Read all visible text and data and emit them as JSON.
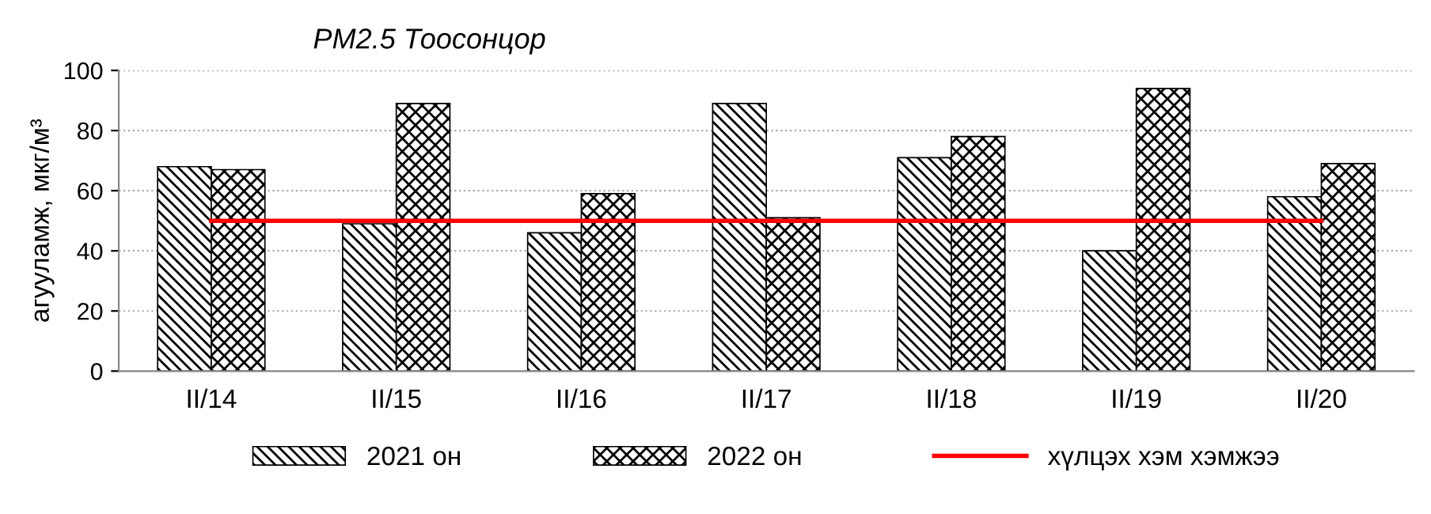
{
  "chart_data": {
    "type": "bar",
    "title": "PM2.5 Тоосонцор",
    "ylabel": "агууламж, мкг/м³",
    "categories": [
      "II/14",
      "II/15",
      "II/16",
      "II/17",
      "II/18",
      "II/19",
      "II/20"
    ],
    "series": [
      {
        "name": "2021 он",
        "color": "#000000",
        "values": [
          68,
          49,
          46,
          89,
          71,
          40,
          58
        ]
      },
      {
        "name": "2022 он",
        "color": "#000000",
        "values": [
          67,
          89,
          59,
          51,
          78,
          94,
          69
        ]
      },
      {
        "name": "хүлцэх хэм хэмжээ",
        "type": "line",
        "color": "#ff0000",
        "values": [
          50,
          50,
          50,
          50,
          50,
          50,
          50
        ]
      }
    ],
    "ylim": [
      0,
      100
    ],
    "yticks": [
      0,
      20,
      40,
      60,
      80,
      100
    ],
    "grid": "y",
    "legend": "bottom"
  }
}
